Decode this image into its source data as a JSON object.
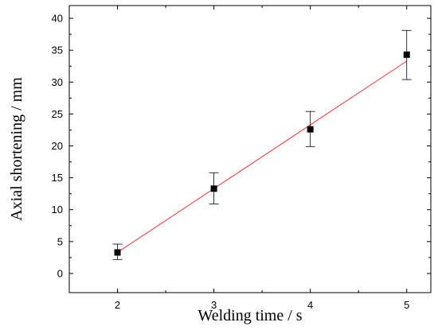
{
  "chart_data": {
    "type": "scatter",
    "xlabel": "Welding time / s",
    "ylabel": "Axial shortening / mm",
    "xlim": [
      1.5,
      5.25
    ],
    "ylim": [
      -3,
      42
    ],
    "xticks": [
      2,
      3,
      4,
      5
    ],
    "yticks": [
      0,
      5,
      10,
      15,
      20,
      25,
      30,
      35,
      40
    ],
    "grid": false,
    "series": [
      {
        "marker": "square",
        "color": "#000000",
        "points": [
          {
            "x": 2,
            "y": 3.3,
            "err_low": 2.2,
            "err_high": 4.6
          },
          {
            "x": 3,
            "y": 13.3,
            "err_low": 10.9,
            "err_high": 15.8
          },
          {
            "x": 4,
            "y": 22.6,
            "err_low": 19.9,
            "err_high": 25.4
          },
          {
            "x": 5,
            "y": 34.3,
            "err_low": 30.4,
            "err_high": 38.1
          }
        ]
      }
    ],
    "fit_line": {
      "color": "#ff3333",
      "from": {
        "x": 2,
        "y": 3.3
      },
      "to": {
        "x": 5,
        "y": 33.3
      }
    }
  }
}
